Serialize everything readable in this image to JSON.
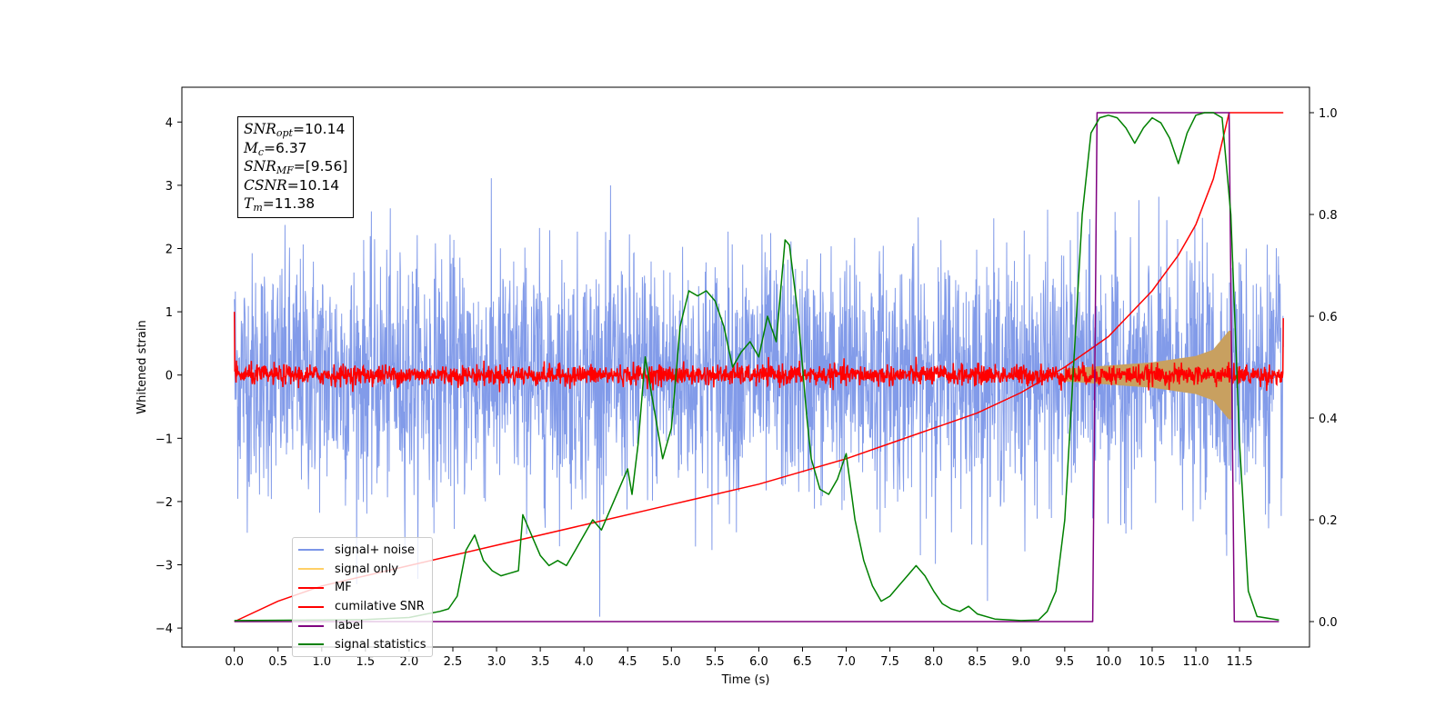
{
  "chart_data": {
    "type": "line",
    "xlabel": "Time (s)",
    "ylabel": "Whitened strain",
    "xlim": [
      -0.6,
      12.3
    ],
    "ylim": [
      -4.3,
      4.55
    ],
    "y2lim": [
      -0.05,
      1.05
    ],
    "x_ticks": [
      0.0,
      0.5,
      1.0,
      1.5,
      2.0,
      2.5,
      3.0,
      3.5,
      4.0,
      4.5,
      5.0,
      5.5,
      6.0,
      6.5,
      7.0,
      7.5,
      8.0,
      8.5,
      9.0,
      9.5,
      10.0,
      10.5,
      11.0,
      11.5
    ],
    "y_ticks": [
      -4,
      -3,
      -2,
      -1,
      0,
      1,
      2,
      3,
      4
    ],
    "y2_ticks": [
      0.0,
      0.2,
      0.4,
      0.6,
      0.8,
      1.0
    ],
    "legend_placement": "lower-left",
    "grid": false,
    "annotation": {
      "snr_opt": "=10.14",
      "mc": "=6.37",
      "snr_mf": "=[9.56]",
      "csnr": "=10.14",
      "tm": "=11.38"
    },
    "series": [
      {
        "name": "signal+ noise",
        "color": "#7b96e8",
        "description": "whitened noise with approximate envelope",
        "x_range": [
          0.0,
          12.0
        ],
        "typical_range": [
          -1.5,
          1.5
        ],
        "peak_max": 4.2,
        "peak_min": -3.9
      },
      {
        "name": "signal only",
        "color": "#ffb000",
        "envelope_x": [
          9.5,
          10.0,
          10.5,
          11.0,
          11.2,
          11.38
        ],
        "envelope_amp": [
          0.1,
          0.15,
          0.2,
          0.3,
          0.4,
          0.7
        ]
      },
      {
        "name": "MF",
        "color": "#ff0000",
        "x_range": [
          0.0,
          12.0
        ],
        "typical_range": [
          -0.15,
          0.2
        ],
        "start_value": 1.0,
        "end_value": 0.9
      },
      {
        "name": "cumilative SNR",
        "color": "#ff0000",
        "axis": "right",
        "x": [
          0.0,
          0.5,
          1.0,
          2.0,
          3.0,
          4.0,
          5.0,
          6.0,
          7.0,
          7.5,
          8.0,
          8.5,
          9.0,
          9.5,
          10.0,
          10.5,
          10.8,
          11.0,
          11.2,
          11.38,
          12.0
        ],
        "values": [
          0.0,
          0.04,
          0.07,
          0.11,
          0.15,
          0.19,
          0.23,
          0.27,
          0.32,
          0.35,
          0.38,
          0.41,
          0.45,
          0.5,
          0.56,
          0.65,
          0.72,
          0.78,
          0.87,
          1.0,
          1.0
        ]
      },
      {
        "name": "label",
        "color": "#800080",
        "axis": "right",
        "x": [
          0.0,
          9.82,
          9.87,
          11.38,
          11.44,
          11.95
        ],
        "values": [
          0.0,
          0.0,
          1.0,
          1.0,
          0.0,
          0.0
        ]
      },
      {
        "name": "signal statistics",
        "color": "#008000",
        "axis": "right",
        "x": [
          0.0,
          1.0,
          1.5,
          2.0,
          2.2,
          2.35,
          2.45,
          2.55,
          2.65,
          2.75,
          2.85,
          2.95,
          3.05,
          3.15,
          3.25,
          3.3,
          3.4,
          3.5,
          3.6,
          3.7,
          3.8,
          3.9,
          4.0,
          4.1,
          4.2,
          4.3,
          4.4,
          4.5,
          4.55,
          4.62,
          4.7,
          4.8,
          4.9,
          5.0,
          5.1,
          5.2,
          5.3,
          5.4,
          5.5,
          5.6,
          5.7,
          5.8,
          5.9,
          6.0,
          6.1,
          6.2,
          6.3,
          6.35,
          6.45,
          6.55,
          6.6,
          6.7,
          6.8,
          6.9,
          7.0,
          7.1,
          7.2,
          7.3,
          7.4,
          7.5,
          7.6,
          7.7,
          7.8,
          7.9,
          8.0,
          8.1,
          8.2,
          8.3,
          8.4,
          8.5,
          8.7,
          9.0,
          9.2,
          9.3,
          9.4,
          9.5,
          9.6,
          9.7,
          9.8,
          9.9,
          10.0,
          10.1,
          10.2,
          10.3,
          10.4,
          10.5,
          10.6,
          10.7,
          10.8,
          10.9,
          11.0,
          11.1,
          11.2,
          11.3,
          11.4,
          11.5,
          11.6,
          11.7,
          11.95
        ],
        "values": [
          0.002,
          0.003,
          0.004,
          0.008,
          0.015,
          0.02,
          0.025,
          0.05,
          0.14,
          0.17,
          0.12,
          0.1,
          0.09,
          0.095,
          0.1,
          0.21,
          0.17,
          0.13,
          0.11,
          0.12,
          0.11,
          0.14,
          0.17,
          0.2,
          0.18,
          0.22,
          0.26,
          0.3,
          0.25,
          0.35,
          0.52,
          0.42,
          0.32,
          0.38,
          0.58,
          0.65,
          0.64,
          0.65,
          0.63,
          0.58,
          0.5,
          0.53,
          0.55,
          0.52,
          0.6,
          0.55,
          0.75,
          0.74,
          0.6,
          0.4,
          0.32,
          0.26,
          0.25,
          0.28,
          0.33,
          0.2,
          0.12,
          0.07,
          0.04,
          0.05,
          0.07,
          0.09,
          0.11,
          0.09,
          0.06,
          0.035,
          0.025,
          0.02,
          0.03,
          0.015,
          0.005,
          0.002,
          0.003,
          0.02,
          0.06,
          0.2,
          0.5,
          0.8,
          0.96,
          0.99,
          0.995,
          0.99,
          0.97,
          0.94,
          0.97,
          0.99,
          0.98,
          0.95,
          0.9,
          0.96,
          0.995,
          1.0,
          1.0,
          0.99,
          0.8,
          0.35,
          0.06,
          0.01,
          0.003
        ]
      }
    ]
  }
}
